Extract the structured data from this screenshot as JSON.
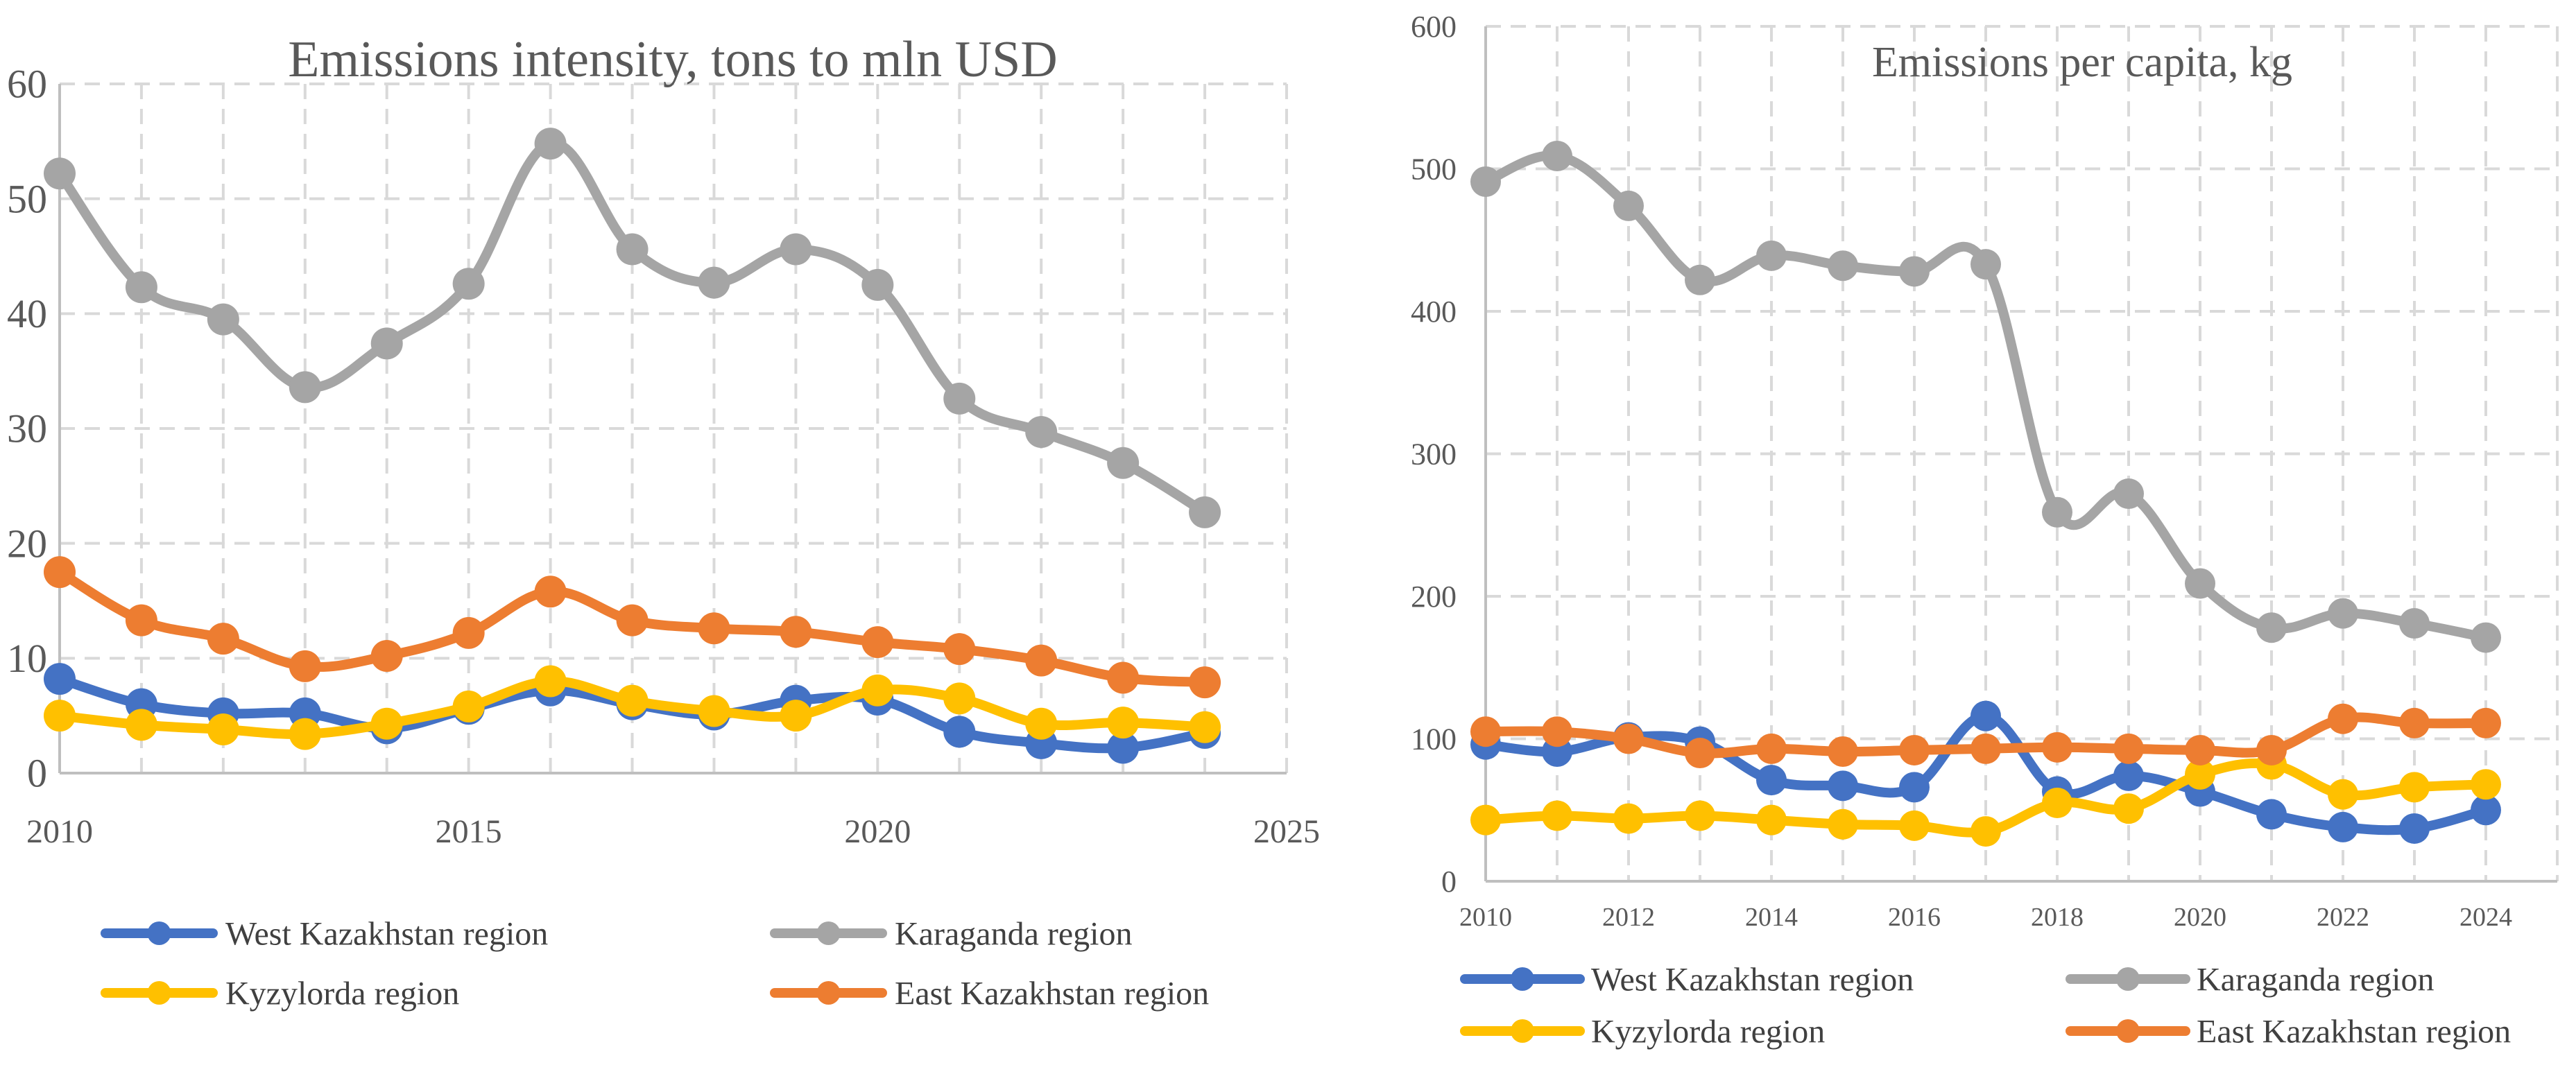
{
  "colors": {
    "west": "#4472C4",
    "karaganda": "#A5A5A5",
    "kyzylorda": "#FFC000",
    "east": "#ED7D31",
    "grid": "#D9D9D9",
    "axis": "#BFBFBF",
    "text": "#595959"
  },
  "chart_data": [
    {
      "type": "line",
      "title": "Emissions intensity, tons to mln USD",
      "xlabel": "",
      "ylabel": "",
      "xlim": [
        2010,
        2025
      ],
      "ylim": [
        0,
        60
      ],
      "x_ticks": [
        2010,
        2015,
        2020,
        2025
      ],
      "x_tick_labels": [
        "2010",
        "2015",
        "2020",
        "2025"
      ],
      "y_ticks": [
        0,
        10,
        20,
        30,
        40,
        50,
        60
      ],
      "y_tick_labels": [
        "0",
        "10",
        "20",
        "30",
        "40",
        "50",
        "60"
      ],
      "grid": true,
      "legend_position": "bottom",
      "x": [
        2010,
        2011,
        2012,
        2013,
        2014,
        2015,
        2016,
        2017,
        2018,
        2019,
        2020,
        2021,
        2022,
        2023,
        2024
      ],
      "series": [
        {
          "name": "West Kazakhstan region",
          "color_key": "west",
          "values": [
            8.2,
            6.0,
            5.2,
            5.2,
            3.9,
            5.6,
            7.2,
            6.0,
            5.1,
            6.3,
            6.4,
            3.6,
            2.6,
            2.2,
            3.5
          ]
        },
        {
          "name": "Karaganda region",
          "color_key": "karaganda",
          "values": [
            52.2,
            42.3,
            39.5,
            33.6,
            37.4,
            42.6,
            54.8,
            45.6,
            42.7,
            45.6,
            42.5,
            32.6,
            29.7,
            27.0,
            22.7
          ]
        },
        {
          "name": "Kyzylorda region",
          "color_key": "kyzylorda",
          "values": [
            5.0,
            4.2,
            3.8,
            3.4,
            4.3,
            5.8,
            8.0,
            6.3,
            5.4,
            5.0,
            7.2,
            6.5,
            4.3,
            4.4,
            4.0
          ]
        },
        {
          "name": "East Kazakhstan region",
          "color_key": "east",
          "values": [
            17.5,
            13.3,
            11.7,
            9.3,
            10.2,
            12.2,
            15.8,
            13.3,
            12.6,
            12.3,
            11.4,
            10.8,
            9.8,
            8.3,
            7.9
          ]
        }
      ]
    },
    {
      "type": "line",
      "title": "Emissions per capita, kg",
      "xlabel": "",
      "ylabel": "",
      "xlim": [
        2010,
        2025
      ],
      "ylim": [
        0,
        600
      ],
      "x_ticks": [
        2010,
        2012,
        2014,
        2016,
        2018,
        2020,
        2022,
        2024
      ],
      "x_tick_labels": [
        "2010",
        "2012",
        "2014",
        "2016",
        "2018",
        "2020",
        "2022",
        "2024"
      ],
      "y_ticks": [
        0,
        100,
        200,
        300,
        400,
        500,
        600
      ],
      "y_tick_labels": [
        "0",
        "100",
        "200",
        "300",
        "400",
        "500",
        "600"
      ],
      "grid": true,
      "legend_position": "bottom",
      "x": [
        2010,
        2011,
        2012,
        2013,
        2014,
        2015,
        2016,
        2017,
        2018,
        2019,
        2020,
        2021,
        2022,
        2023,
        2024
      ],
      "series": [
        {
          "name": "West Kazakhstan region",
          "color_key": "west",
          "values": [
            96,
            91,
            101,
            98,
            71,
            67,
            66,
            116,
            63,
            74,
            63,
            47,
            38,
            37,
            50
          ]
        },
        {
          "name": "Karaganda region",
          "color_key": "karaganda",
          "values": [
            491,
            509,
            474,
            422,
            439,
            432,
            428,
            433,
            259,
            272,
            209,
            178,
            188,
            181,
            171
          ]
        },
        {
          "name": "Kyzylorda region",
          "color_key": "kyzylorda",
          "values": [
            43,
            46,
            44,
            46,
            43,
            40,
            39,
            35,
            55,
            51,
            75,
            82,
            61,
            66,
            68
          ]
        },
        {
          "name": "East Kazakhstan region",
          "color_key": "east",
          "values": [
            105,
            105,
            100,
            90,
            93,
            91,
            92,
            93,
            94,
            93,
            92,
            92,
            114,
            111,
            111
          ]
        }
      ]
    }
  ]
}
